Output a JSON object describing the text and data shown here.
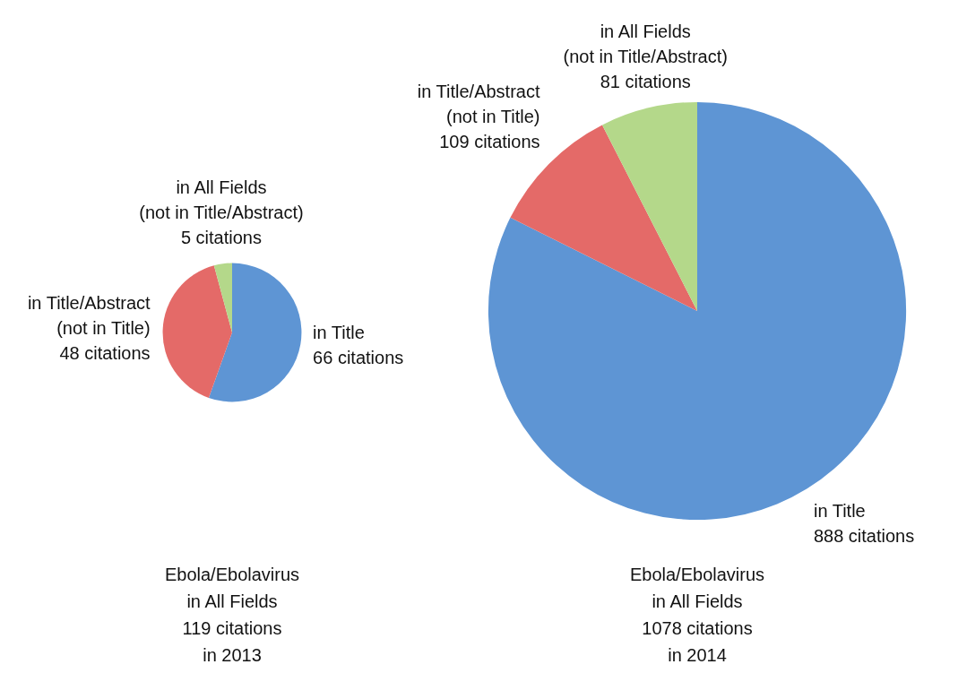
{
  "chart_data": [
    {
      "type": "pie",
      "title": "Ebola/Ebolavirus\nin All Fields\n119 citations\nin 2013",
      "categories": [
        "in Title",
        "in Title/Abstract\n(not in Title)",
        "in All Fields\n(not in Title/Abstract)"
      ],
      "values": [
        66,
        48,
        5
      ],
      "colors": [
        "#5e95d4",
        "#e46a68",
        "#b4d88a"
      ],
      "value_labels": [
        "66 citations",
        "48 citations",
        "5 citations"
      ]
    },
    {
      "type": "pie",
      "title": "Ebola/Ebolavirus\nin All Fields\n1078 citations\nin 2014",
      "categories": [
        "in Title",
        "in Title/Abstract\n(not in Title)",
        "in All Fields\n(not in Title/Abstract)"
      ],
      "values": [
        888,
        109,
        81
      ],
      "colors": [
        "#5e95d4",
        "#e46a68",
        "#b4d88a"
      ],
      "value_labels": [
        "888 citations",
        "109 citations",
        "81 citations"
      ]
    }
  ]
}
